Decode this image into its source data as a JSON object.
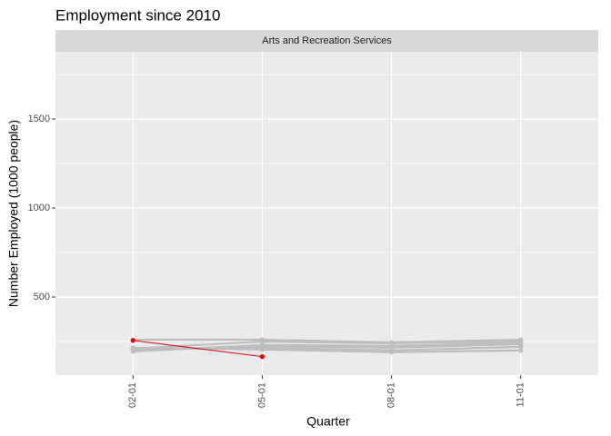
{
  "chart_data": {
    "type": "line",
    "title": "Employment since 2010",
    "facet": "Arts and Recreation Services",
    "x_label": "Quarter",
    "y_label": "Number Employed (1000 people)",
    "categories": [
      "02-01",
      "05-01",
      "08-01",
      "11-01"
    ],
    "series": [
      {
        "color": "#bebebe",
        "values": [
          210,
          250,
          240,
          255
        ]
      },
      {
        "color": "#bebebe",
        "values": [
          200,
          225,
          215,
          235
        ]
      },
      {
        "color": "#bebebe",
        "values": [
          205,
          215,
          200,
          220
        ]
      },
      {
        "color": "#bebebe",
        "values": [
          260,
          260,
          245,
          260
        ]
      },
      {
        "color": "#bebebe",
        "values": [
          215,
          205,
          190,
          200
        ]
      },
      {
        "color": "#bebebe",
        "values": [
          195,
          230,
          225,
          245
        ]
      },
      {
        "color": "#e00000",
        "values": [
          256,
          165,
          null,
          null
        ]
      }
    ],
    "ylim": [
      61,
      1878
    ],
    "yticks": [
      500,
      1000,
      1500
    ],
    "y_minor_grid": [
      250,
      750,
      1250,
      1750
    ],
    "grid": true
  }
}
